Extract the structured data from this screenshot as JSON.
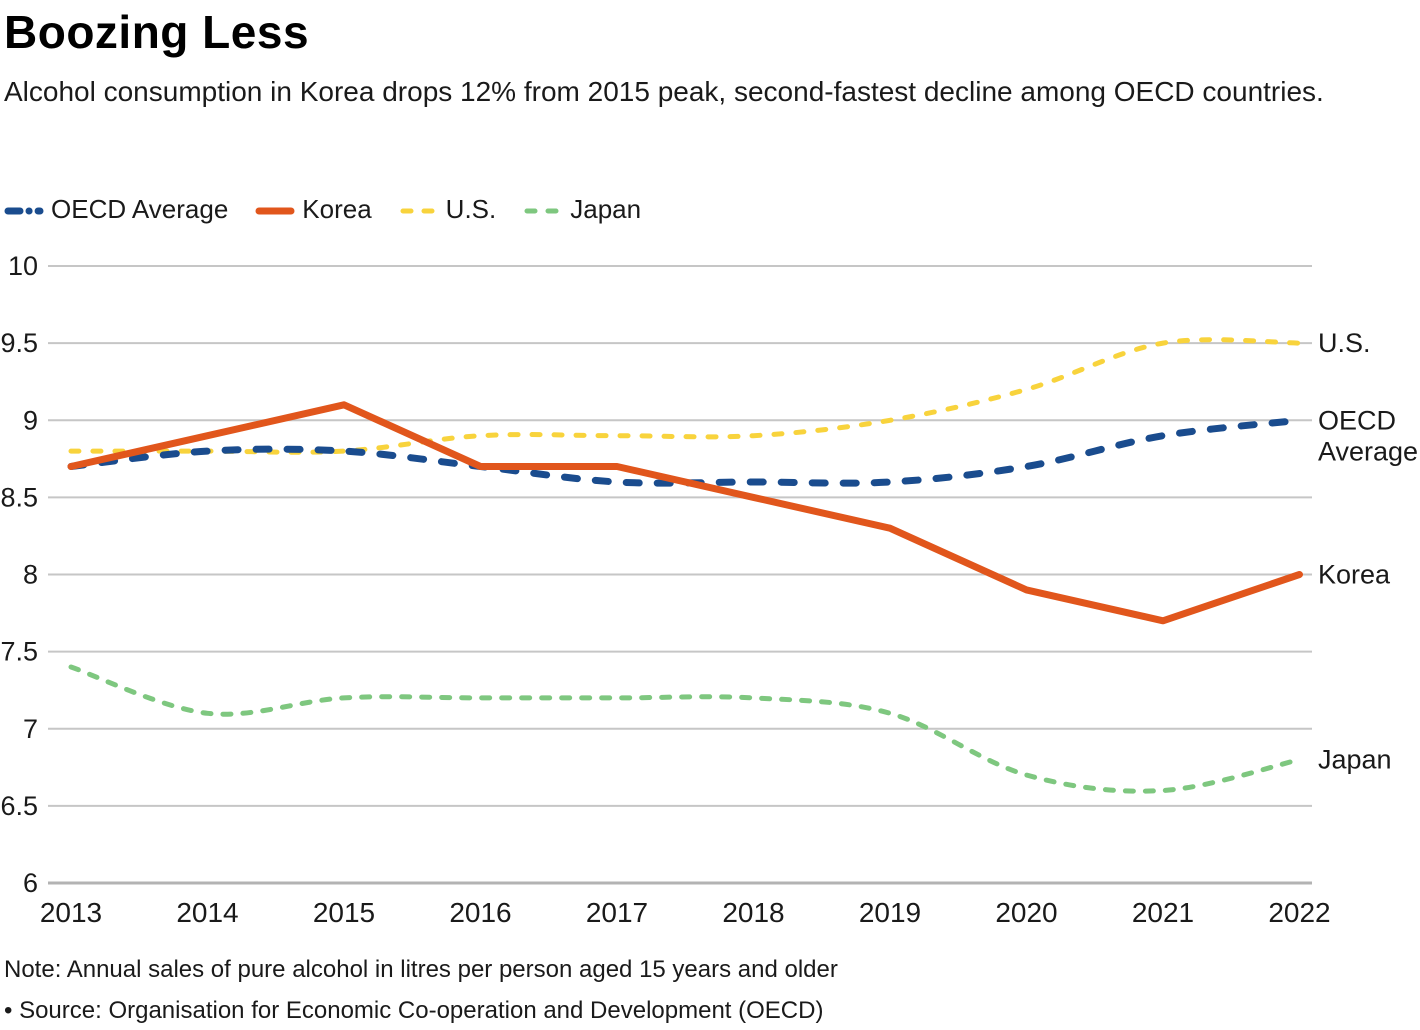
{
  "page": {
    "background": "#ffffff",
    "text_color": "#1a1a1a",
    "grid_color": "#c6c6c6"
  },
  "header": {
    "title": "Boozing Less",
    "subtitle": "Alcohol consumption in Korea drops 12% from 2015 peak, second-fastest decline among OECD countries."
  },
  "legend": {
    "items": [
      {
        "label": "OECD Average",
        "color": "#1a4c8e",
        "line_style": "dash-dot"
      },
      {
        "label": "Korea",
        "color": "#e1561c",
        "line_style": "solid"
      },
      {
        "label": "U.S.",
        "color": "#f8d33c",
        "line_style": "dashed"
      },
      {
        "label": "Japan",
        "color": "#7ec77f",
        "line_style": "dashed"
      }
    ]
  },
  "chart_data": {
    "type": "line",
    "title": "Boozing Less",
    "xlabel": "",
    "ylabel": "",
    "x": [
      2013,
      2014,
      2015,
      2016,
      2017,
      2018,
      2019,
      2020,
      2021,
      2022
    ],
    "series": [
      {
        "name": "U.S.",
        "values": [
          8.8,
          8.8,
          8.8,
          8.9,
          8.9,
          8.9,
          9.0,
          9.2,
          9.5,
          9.5
        ],
        "color": "#f8d33c",
        "line_style": "dashed",
        "stroke_width": 5,
        "dash_pattern": "8 14",
        "smooth": true,
        "end_label_lines": [
          "U.S."
        ]
      },
      {
        "name": "Japan",
        "values": [
          7.4,
          7.1,
          7.2,
          7.2,
          7.2,
          7.2,
          7.1,
          6.7,
          6.6,
          6.8
        ],
        "color": "#7ec77f",
        "line_style": "dashed",
        "stroke_width": 5,
        "dash_pattern": "8 12",
        "smooth": true,
        "end_label_lines": [
          "Japan"
        ]
      },
      {
        "name": "OECD Average",
        "values": [
          8.7,
          8.8,
          8.8,
          8.7,
          8.6,
          8.6,
          8.6,
          8.7,
          8.9,
          9.0
        ],
        "color": "#1a4c8e",
        "line_style": "dash-dot",
        "stroke_width": 7,
        "dash_pattern": "13 18",
        "smooth": true,
        "end_label_lines": [
          "OECD",
          "Average"
        ]
      },
      {
        "name": "Korea",
        "values": [
          8.7,
          8.9,
          9.1,
          8.7,
          8.7,
          8.5,
          8.3,
          7.9,
          7.7,
          8.0
        ],
        "color": "#e1561c",
        "line_style": "solid",
        "stroke_width": 7,
        "dash_pattern": "",
        "smooth": false,
        "end_label_lines": [
          "Korea"
        ]
      }
    ],
    "ylim": [
      6,
      10
    ],
    "ytick_step": 0.5,
    "ytick_labels": [
      "6",
      "6.5",
      "7",
      "7.5",
      "8",
      "8.5",
      "9",
      "9.5",
      "10"
    ],
    "grid": true,
    "legend_position": "top-left"
  },
  "footer": {
    "note": "Note: Annual sales of pure alcohol in litres per person aged 15 years and older",
    "source": "• Source: Organisation for Economic Co-operation and Development (OECD)"
  }
}
